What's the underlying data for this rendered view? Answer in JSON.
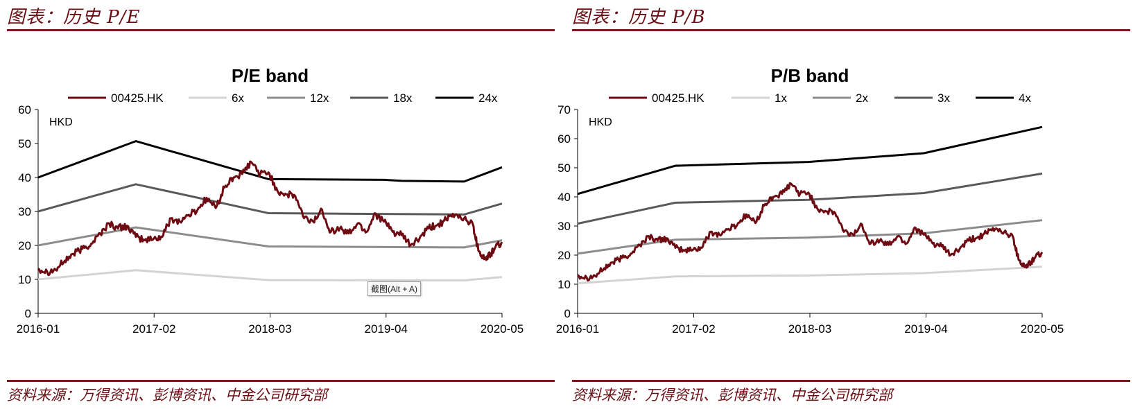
{
  "left_panel": {
    "header": "图表：历史 P/E",
    "source": "资料来源：万得资讯、彭博资讯、中金公司研究部",
    "tooltip": "截图(Alt + A)"
  },
  "right_panel": {
    "header": "图表：历史 P/B",
    "source": "资料来源：万得资讯、彭博资讯、中金公司研究部"
  },
  "colors": {
    "header_red": "#6b0d14",
    "price": "#6e0b12",
    "band1": "#d3d3d3",
    "band2": "#8c8c8c",
    "band3": "#5a5a5a",
    "band4": "#000000"
  },
  "chart_data": [
    {
      "type": "line",
      "title": "P/E band",
      "unit_label": "HKD",
      "x_tick_labels": [
        "2016-01",
        "2017-02",
        "2018-03",
        "2019-04",
        "2020-05"
      ],
      "x_range": [
        "2016-01-01",
        "2020-05-10"
      ],
      "ylim": [
        0,
        60
      ],
      "yticks": [
        0,
        10,
        20,
        30,
        40,
        50,
        60
      ],
      "grid": false,
      "legend_position": "top",
      "price_series": {
        "name": "00425.HK",
        "points": [
          [
            "2016-01-01",
            13.2
          ],
          [
            "2016-02-01",
            12.3
          ],
          [
            "2016-03-01",
            12.8
          ],
          [
            "2016-04-01",
            15.5
          ],
          [
            "2016-05-01",
            17.5
          ],
          [
            "2016-06-01",
            19.0
          ],
          [
            "2016-07-01",
            20.5
          ],
          [
            "2016-08-01",
            23.5
          ],
          [
            "2016-09-01",
            26.5
          ],
          [
            "2016-10-01",
            25.0
          ],
          [
            "2016-11-01",
            25.8
          ],
          [
            "2016-12-01",
            22.5
          ],
          [
            "2017-01-01",
            21.5
          ],
          [
            "2017-02-01",
            22.0
          ],
          [
            "2017-03-01",
            22.5
          ],
          [
            "2017-04-01",
            28.0
          ],
          [
            "2017-05-01",
            27.0
          ],
          [
            "2017-06-01",
            29.0
          ],
          [
            "2017-07-01",
            30.5
          ],
          [
            "2017-08-01",
            34.0
          ],
          [
            "2017-09-01",
            31.0
          ],
          [
            "2017-10-01",
            37.0
          ],
          [
            "2017-11-01",
            40.0
          ],
          [
            "2017-12-01",
            41.0
          ],
          [
            "2018-01-01",
            44.5
          ],
          [
            "2018-02-01",
            41.0
          ],
          [
            "2018-03-01",
            41.5
          ],
          [
            "2018-04-01",
            36.0
          ],
          [
            "2018-05-01",
            35.0
          ],
          [
            "2018-06-01",
            34.5
          ],
          [
            "2018-07-01",
            28.0
          ],
          [
            "2018-08-01",
            27.0
          ],
          [
            "2018-09-01",
            30.5
          ],
          [
            "2018-10-01",
            24.0
          ],
          [
            "2018-11-01",
            25.0
          ],
          [
            "2018-12-01",
            23.5
          ],
          [
            "2019-01-01",
            26.5
          ],
          [
            "2019-02-01",
            24.0
          ],
          [
            "2019-03-01",
            29.5
          ],
          [
            "2019-04-01",
            27.0
          ],
          [
            "2019-05-01",
            24.0
          ],
          [
            "2019-06-01",
            23.0
          ],
          [
            "2019-07-01",
            20.0
          ],
          [
            "2019-08-01",
            22.0
          ],
          [
            "2019-09-01",
            25.0
          ],
          [
            "2019-10-01",
            26.0
          ],
          [
            "2019-11-01",
            27.5
          ],
          [
            "2019-12-01",
            29.0
          ],
          [
            "2020-01-01",
            28.0
          ],
          [
            "2020-02-01",
            26.0
          ],
          [
            "2020-02-15",
            20.0
          ],
          [
            "2020-03-01",
            17.0
          ],
          [
            "2020-03-15",
            16.0
          ],
          [
            "2020-04-01",
            17.5
          ],
          [
            "2020-04-15",
            19.0
          ],
          [
            "2020-05-10",
            21.0
          ]
        ]
      },
      "bands": [
        {
          "name": "6x",
          "points": [
            [
              "2016-01-01",
              10.0
            ],
            [
              "2016-12-01",
              12.7
            ],
            [
              "2018-03-01",
              9.8
            ],
            [
              "2020-01-01",
              9.7
            ],
            [
              "2020-05-10",
              10.7
            ]
          ]
        },
        {
          "name": "12x",
          "points": [
            [
              "2016-01-01",
              20.0
            ],
            [
              "2016-12-01",
              25.3
            ],
            [
              "2018-03-01",
              19.7
            ],
            [
              "2020-01-01",
              19.4
            ],
            [
              "2020-05-10",
              21.5
            ]
          ]
        },
        {
          "name": "18x",
          "points": [
            [
              "2016-01-01",
              30.0
            ],
            [
              "2016-12-01",
              38.0
            ],
            [
              "2018-03-01",
              29.5
            ],
            [
              "2020-01-01",
              29.1
            ],
            [
              "2020-05-10",
              32.3
            ]
          ]
        },
        {
          "name": "24x",
          "points": [
            [
              "2016-01-01",
              40.0
            ],
            [
              "2016-12-01",
              50.7
            ],
            [
              "2018-03-01",
              39.5
            ],
            [
              "2019-04-01",
              39.3
            ],
            [
              "2019-06-01",
              39.0
            ],
            [
              "2020-01-01",
              38.8
            ],
            [
              "2020-05-10",
              43.0
            ]
          ]
        }
      ]
    },
    {
      "type": "line",
      "title": "P/B band",
      "unit_label": "HKD",
      "x_tick_labels": [
        "2016-01",
        "2017-02",
        "2018-03",
        "2019-04",
        "2020-05"
      ],
      "x_range": [
        "2016-01-01",
        "2020-05-10"
      ],
      "ylim": [
        0,
        70
      ],
      "yticks": [
        0,
        10,
        20,
        30,
        40,
        50,
        60,
        70
      ],
      "grid": false,
      "legend_position": "top",
      "price_series": {
        "name": "00425.HK",
        "points": [
          [
            "2016-01-01",
            13.2
          ],
          [
            "2016-02-01",
            12.3
          ],
          [
            "2016-03-01",
            12.8
          ],
          [
            "2016-04-01",
            15.5
          ],
          [
            "2016-05-01",
            17.5
          ],
          [
            "2016-06-01",
            19.0
          ],
          [
            "2016-07-01",
            20.5
          ],
          [
            "2016-08-01",
            23.5
          ],
          [
            "2016-09-01",
            26.5
          ],
          [
            "2016-10-01",
            25.0
          ],
          [
            "2016-11-01",
            25.8
          ],
          [
            "2016-12-01",
            22.5
          ],
          [
            "2017-01-01",
            21.5
          ],
          [
            "2017-02-01",
            22.0
          ],
          [
            "2017-03-01",
            22.5
          ],
          [
            "2017-04-01",
            28.0
          ],
          [
            "2017-05-01",
            27.0
          ],
          [
            "2017-06-01",
            29.0
          ],
          [
            "2017-07-01",
            30.5
          ],
          [
            "2017-08-01",
            34.0
          ],
          [
            "2017-09-01",
            31.0
          ],
          [
            "2017-10-01",
            37.0
          ],
          [
            "2017-11-01",
            40.0
          ],
          [
            "2017-12-01",
            41.0
          ],
          [
            "2018-01-01",
            44.5
          ],
          [
            "2018-02-01",
            41.0
          ],
          [
            "2018-03-01",
            41.5
          ],
          [
            "2018-04-01",
            36.0
          ],
          [
            "2018-05-01",
            35.0
          ],
          [
            "2018-06-01",
            34.5
          ],
          [
            "2018-07-01",
            28.0
          ],
          [
            "2018-08-01",
            27.0
          ],
          [
            "2018-09-01",
            30.5
          ],
          [
            "2018-10-01",
            24.0
          ],
          [
            "2018-11-01",
            25.0
          ],
          [
            "2018-12-01",
            23.5
          ],
          [
            "2019-01-01",
            26.5
          ],
          [
            "2019-02-01",
            24.0
          ],
          [
            "2019-03-01",
            29.5
          ],
          [
            "2019-04-01",
            27.0
          ],
          [
            "2019-05-01",
            24.0
          ],
          [
            "2019-06-01",
            23.0
          ],
          [
            "2019-07-01",
            20.0
          ],
          [
            "2019-08-01",
            22.0
          ],
          [
            "2019-09-01",
            25.0
          ],
          [
            "2019-10-01",
            26.0
          ],
          [
            "2019-11-01",
            27.5
          ],
          [
            "2019-12-01",
            29.0
          ],
          [
            "2020-01-01",
            28.0
          ],
          [
            "2020-02-01",
            26.0
          ],
          [
            "2020-02-15",
            20.0
          ],
          [
            "2020-03-01",
            17.0
          ],
          [
            "2020-03-15",
            16.0
          ],
          [
            "2020-04-01",
            17.5
          ],
          [
            "2020-04-15",
            19.0
          ],
          [
            "2020-05-10",
            21.0
          ]
        ]
      },
      "bands": [
        {
          "name": "1x",
          "points": [
            [
              "2016-01-01",
              10.3
            ],
            [
              "2016-12-01",
              12.7
            ],
            [
              "2018-03-01",
              13.0
            ],
            [
              "2019-04-01",
              13.8
            ],
            [
              "2020-05-10",
              16.0
            ]
          ]
        },
        {
          "name": "2x",
          "points": [
            [
              "2016-01-01",
              20.5
            ],
            [
              "2016-12-01",
              25.3
            ],
            [
              "2018-03-01",
              26.0
            ],
            [
              "2019-04-01",
              27.5
            ],
            [
              "2020-05-10",
              32.0
            ]
          ]
        },
        {
          "name": "3x",
          "points": [
            [
              "2016-01-01",
              30.8
            ],
            [
              "2016-12-01",
              38.0
            ],
            [
              "2018-03-01",
              39.0
            ],
            [
              "2019-04-01",
              41.3
            ],
            [
              "2020-05-10",
              48.0
            ]
          ]
        },
        {
          "name": "4x",
          "points": [
            [
              "2016-01-01",
              41.0
            ],
            [
              "2016-12-01",
              50.7
            ],
            [
              "2018-03-01",
              52.0
            ],
            [
              "2019-04-01",
              55.0
            ],
            [
              "2020-05-10",
              64.0
            ]
          ]
        }
      ]
    }
  ]
}
